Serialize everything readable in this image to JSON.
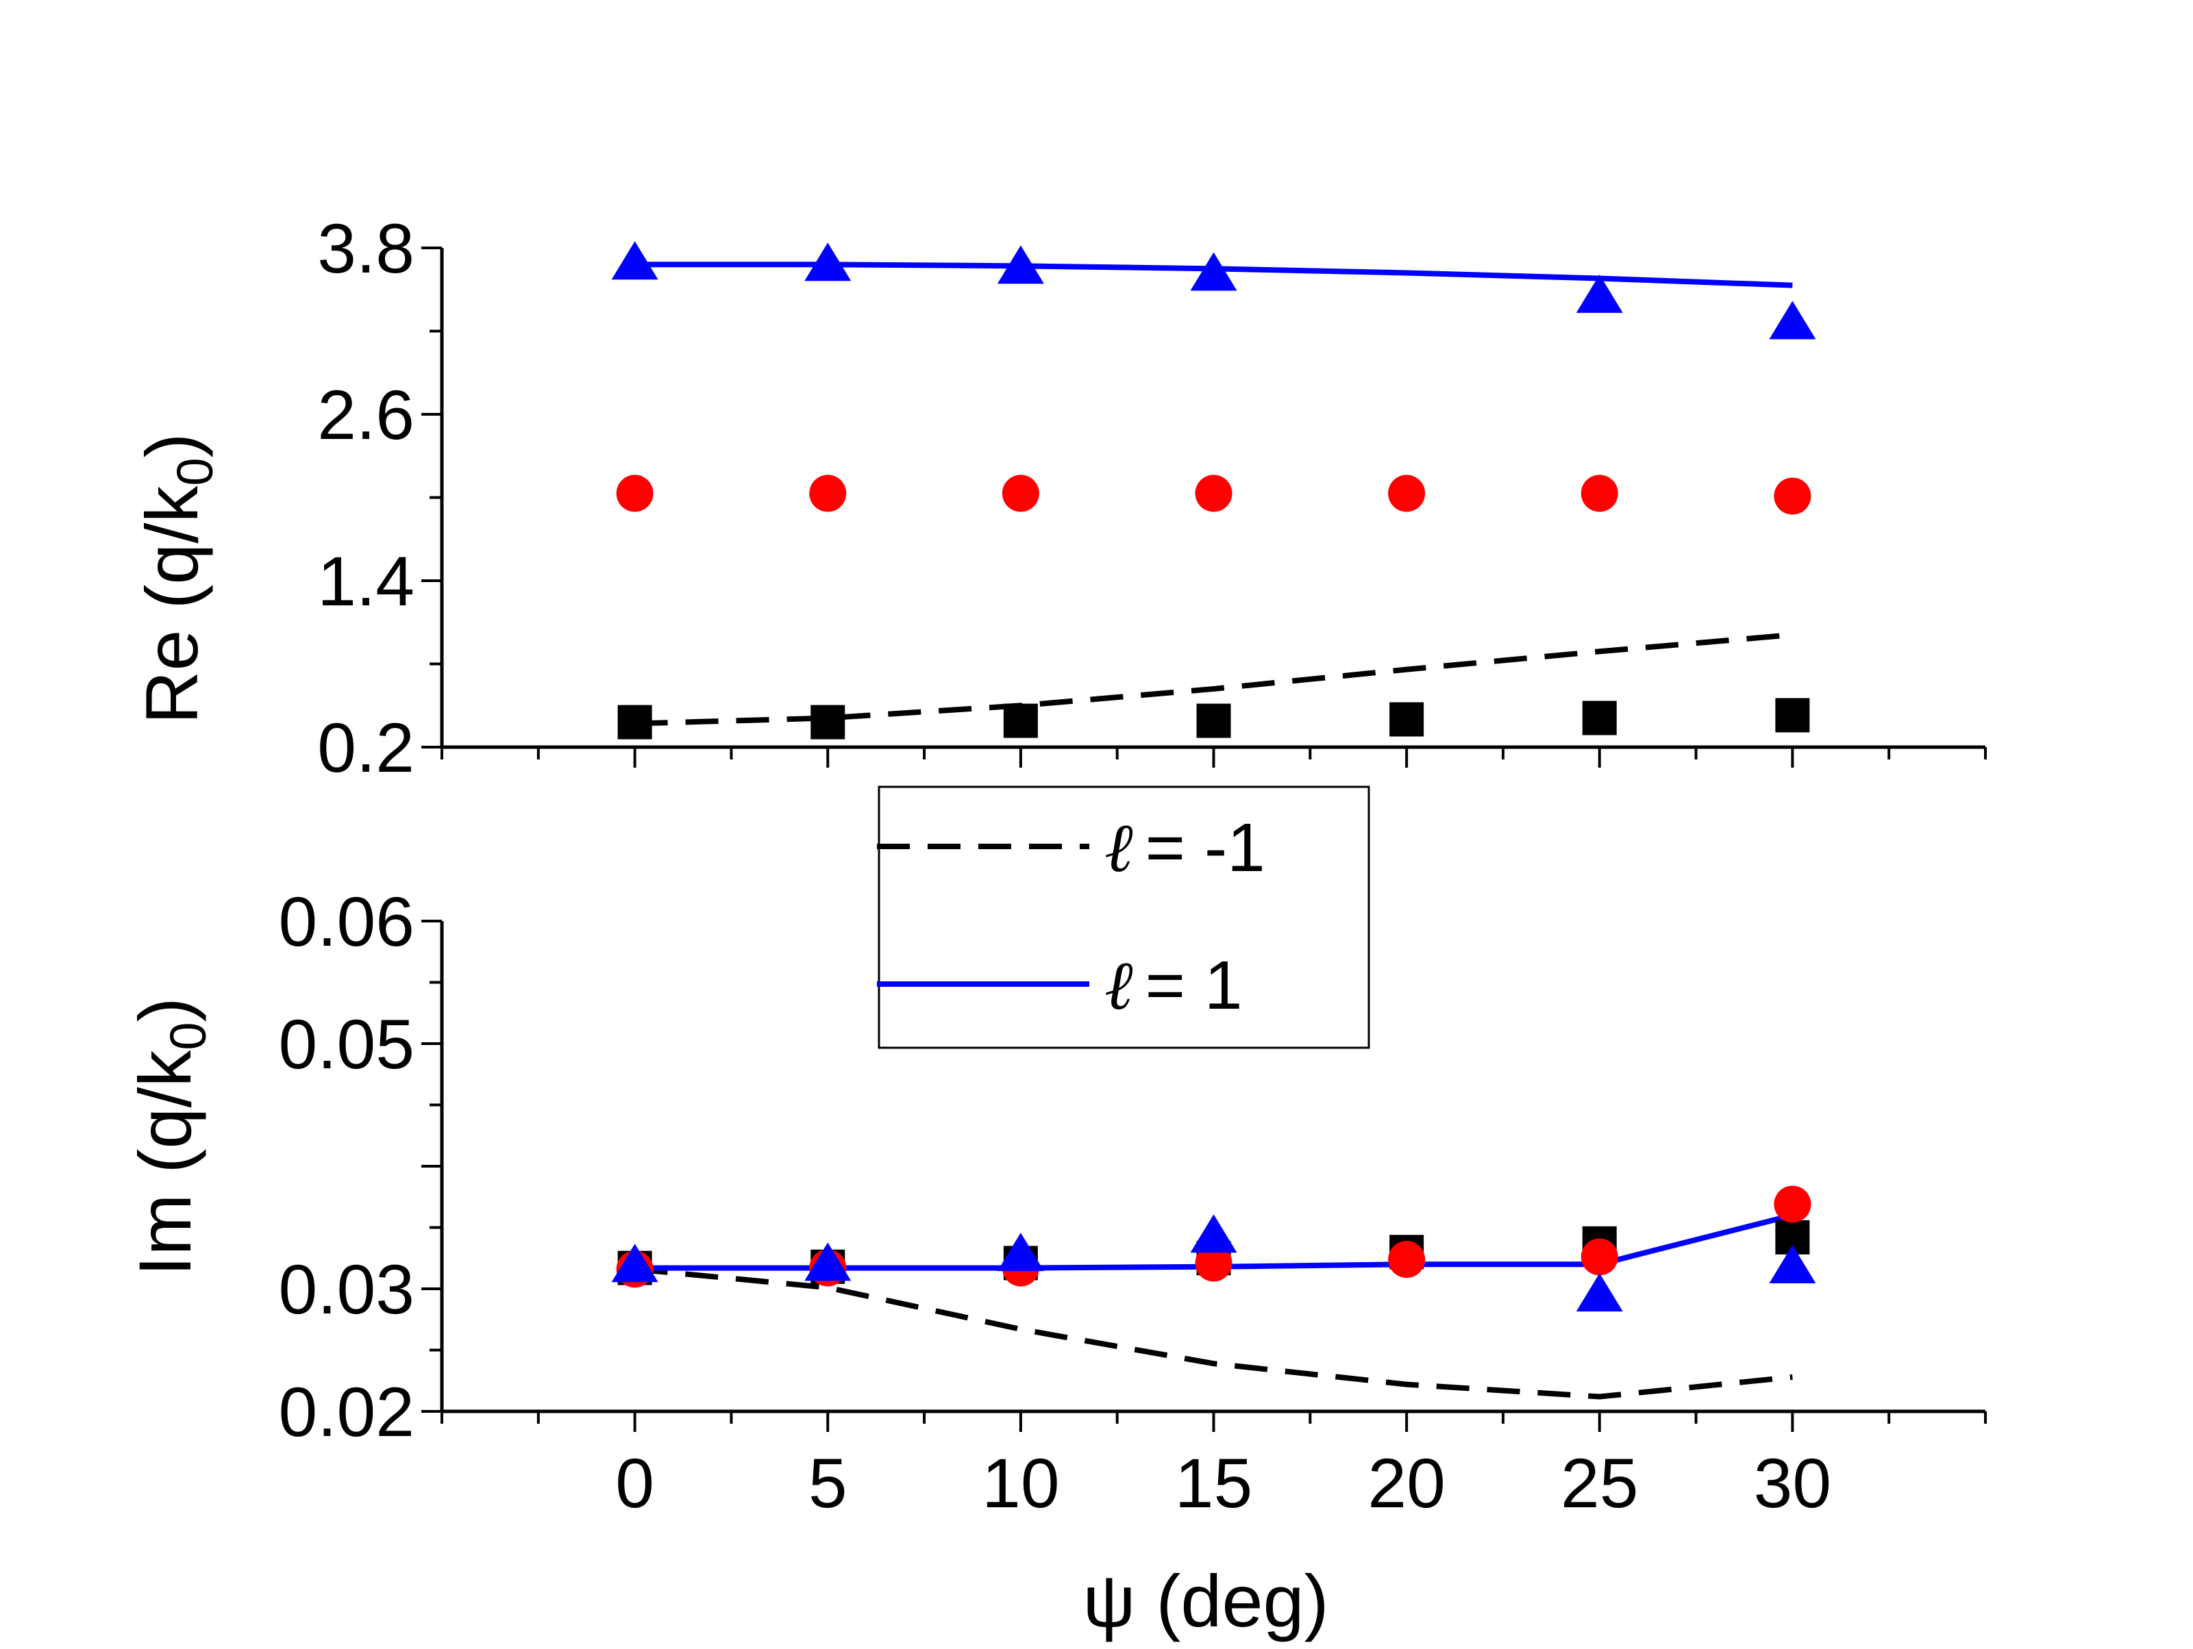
{
  "chart_data": [
    {
      "id": "re",
      "type": "scatter+line",
      "ylabel": {
        "main": "Re (q/k",
        "sub": "0",
        "close": ")"
      },
      "xlim": [
        -5,
        35
      ],
      "ylim": [
        0.2,
        3.8
      ],
      "yticks": [
        0.2,
        1.4,
        2.6,
        3.8
      ],
      "ytick_labels": [
        "0.2",
        "1.4",
        "2.6",
        "3.8"
      ],
      "xticks": [
        0,
        5,
        10,
        15,
        20,
        25,
        30
      ],
      "x": [
        0,
        5,
        10,
        15,
        20,
        25,
        30
      ],
      "lines": [
        {
          "name": "ℓ = -1",
          "style": "dashed",
          "color": "#000000",
          "values": [
            0.37,
            0.41,
            0.5,
            0.62,
            0.76,
            0.89,
            1.01
          ]
        },
        {
          "name": "ℓ = 1",
          "style": "solid",
          "color": "#0000ff",
          "values": [
            3.68,
            3.68,
            3.67,
            3.65,
            3.62,
            3.58,
            3.53
          ]
        }
      ],
      "markers": [
        {
          "shape": "square",
          "color": "#000000",
          "values": [
            0.38,
            0.38,
            0.39,
            0.39,
            0.4,
            0.41,
            0.43
          ]
        },
        {
          "shape": "circle",
          "color": "#ff0000",
          "values": [
            2.03,
            2.03,
            2.03,
            2.03,
            2.03,
            2.03,
            2.01
          ]
        },
        {
          "shape": "triangle",
          "color": "#0000ff",
          "values": [
            3.7,
            3.69,
            3.67,
            3.62,
            3.46,
            3.27
          ]
        }
      ]
    },
    {
      "id": "im",
      "type": "scatter+line",
      "ylabel": {
        "main": "Im (q/k",
        "sub": "0",
        "close": ")"
      },
      "xlabel": "ψ (deg)",
      "xlim": [
        -5,
        35
      ],
      "ylim": [
        0.02,
        0.06
      ],
      "yticks": [
        0.02,
        0.03,
        0.05,
        0.06
      ],
      "ytick_labels": [
        "0.02",
        "0.03",
        "0.05",
        "0.06"
      ],
      "xticks": [
        0,
        5,
        10,
        15,
        20,
        25,
        30
      ],
      "xtick_labels": [
        "0",
        "5",
        "10",
        "15",
        "20",
        "25",
        "30"
      ],
      "x": [
        0,
        5,
        10,
        15,
        20,
        25,
        30
      ],
      "lines": [
        {
          "name": "ℓ = -1",
          "style": "dashed",
          "color": "#000000",
          "values": [
            0.0316,
            0.0301,
            0.0267,
            0.0239,
            0.0222,
            0.0212,
            0.0228
          ]
        },
        {
          "name": "ℓ = 1",
          "style": "solid",
          "color": "#0000ff",
          "values": [
            0.0317,
            0.0317,
            0.0317,
            0.0318,
            0.032,
            0.032,
            0.036
          ]
        }
      ],
      "markers": [
        {
          "shape": "square",
          "color": "#000000",
          "values": [
            0.0317,
            0.0318,
            0.0321,
            0.0325,
            0.033,
            0.0337,
            0.0342
          ]
        },
        {
          "shape": "circle",
          "color": "#ff0000",
          "values": [
            0.0316,
            0.0317,
            0.0317,
            0.0321,
            0.0324,
            0.0326,
            0.0369
          ]
        },
        {
          "shape": "triangle",
          "color": "#0000ff",
          "values": [
            0.032,
            0.0321,
            0.0329,
            0.0344,
            0.0296,
            0.0319
          ]
        },
        {
          "shape": "triangle-x",
          "x": [
            0,
            5,
            10,
            15,
            25,
            30
          ]
        }
      ]
    }
  ],
  "legend": {
    "entries": [
      {
        "ell": "ℓ",
        "text": "= -1",
        "style": "dashed",
        "color": "#000000"
      },
      {
        "ell": "ℓ",
        "text": "= 1",
        "style": "solid",
        "color": "#0000ff"
      }
    ]
  }
}
